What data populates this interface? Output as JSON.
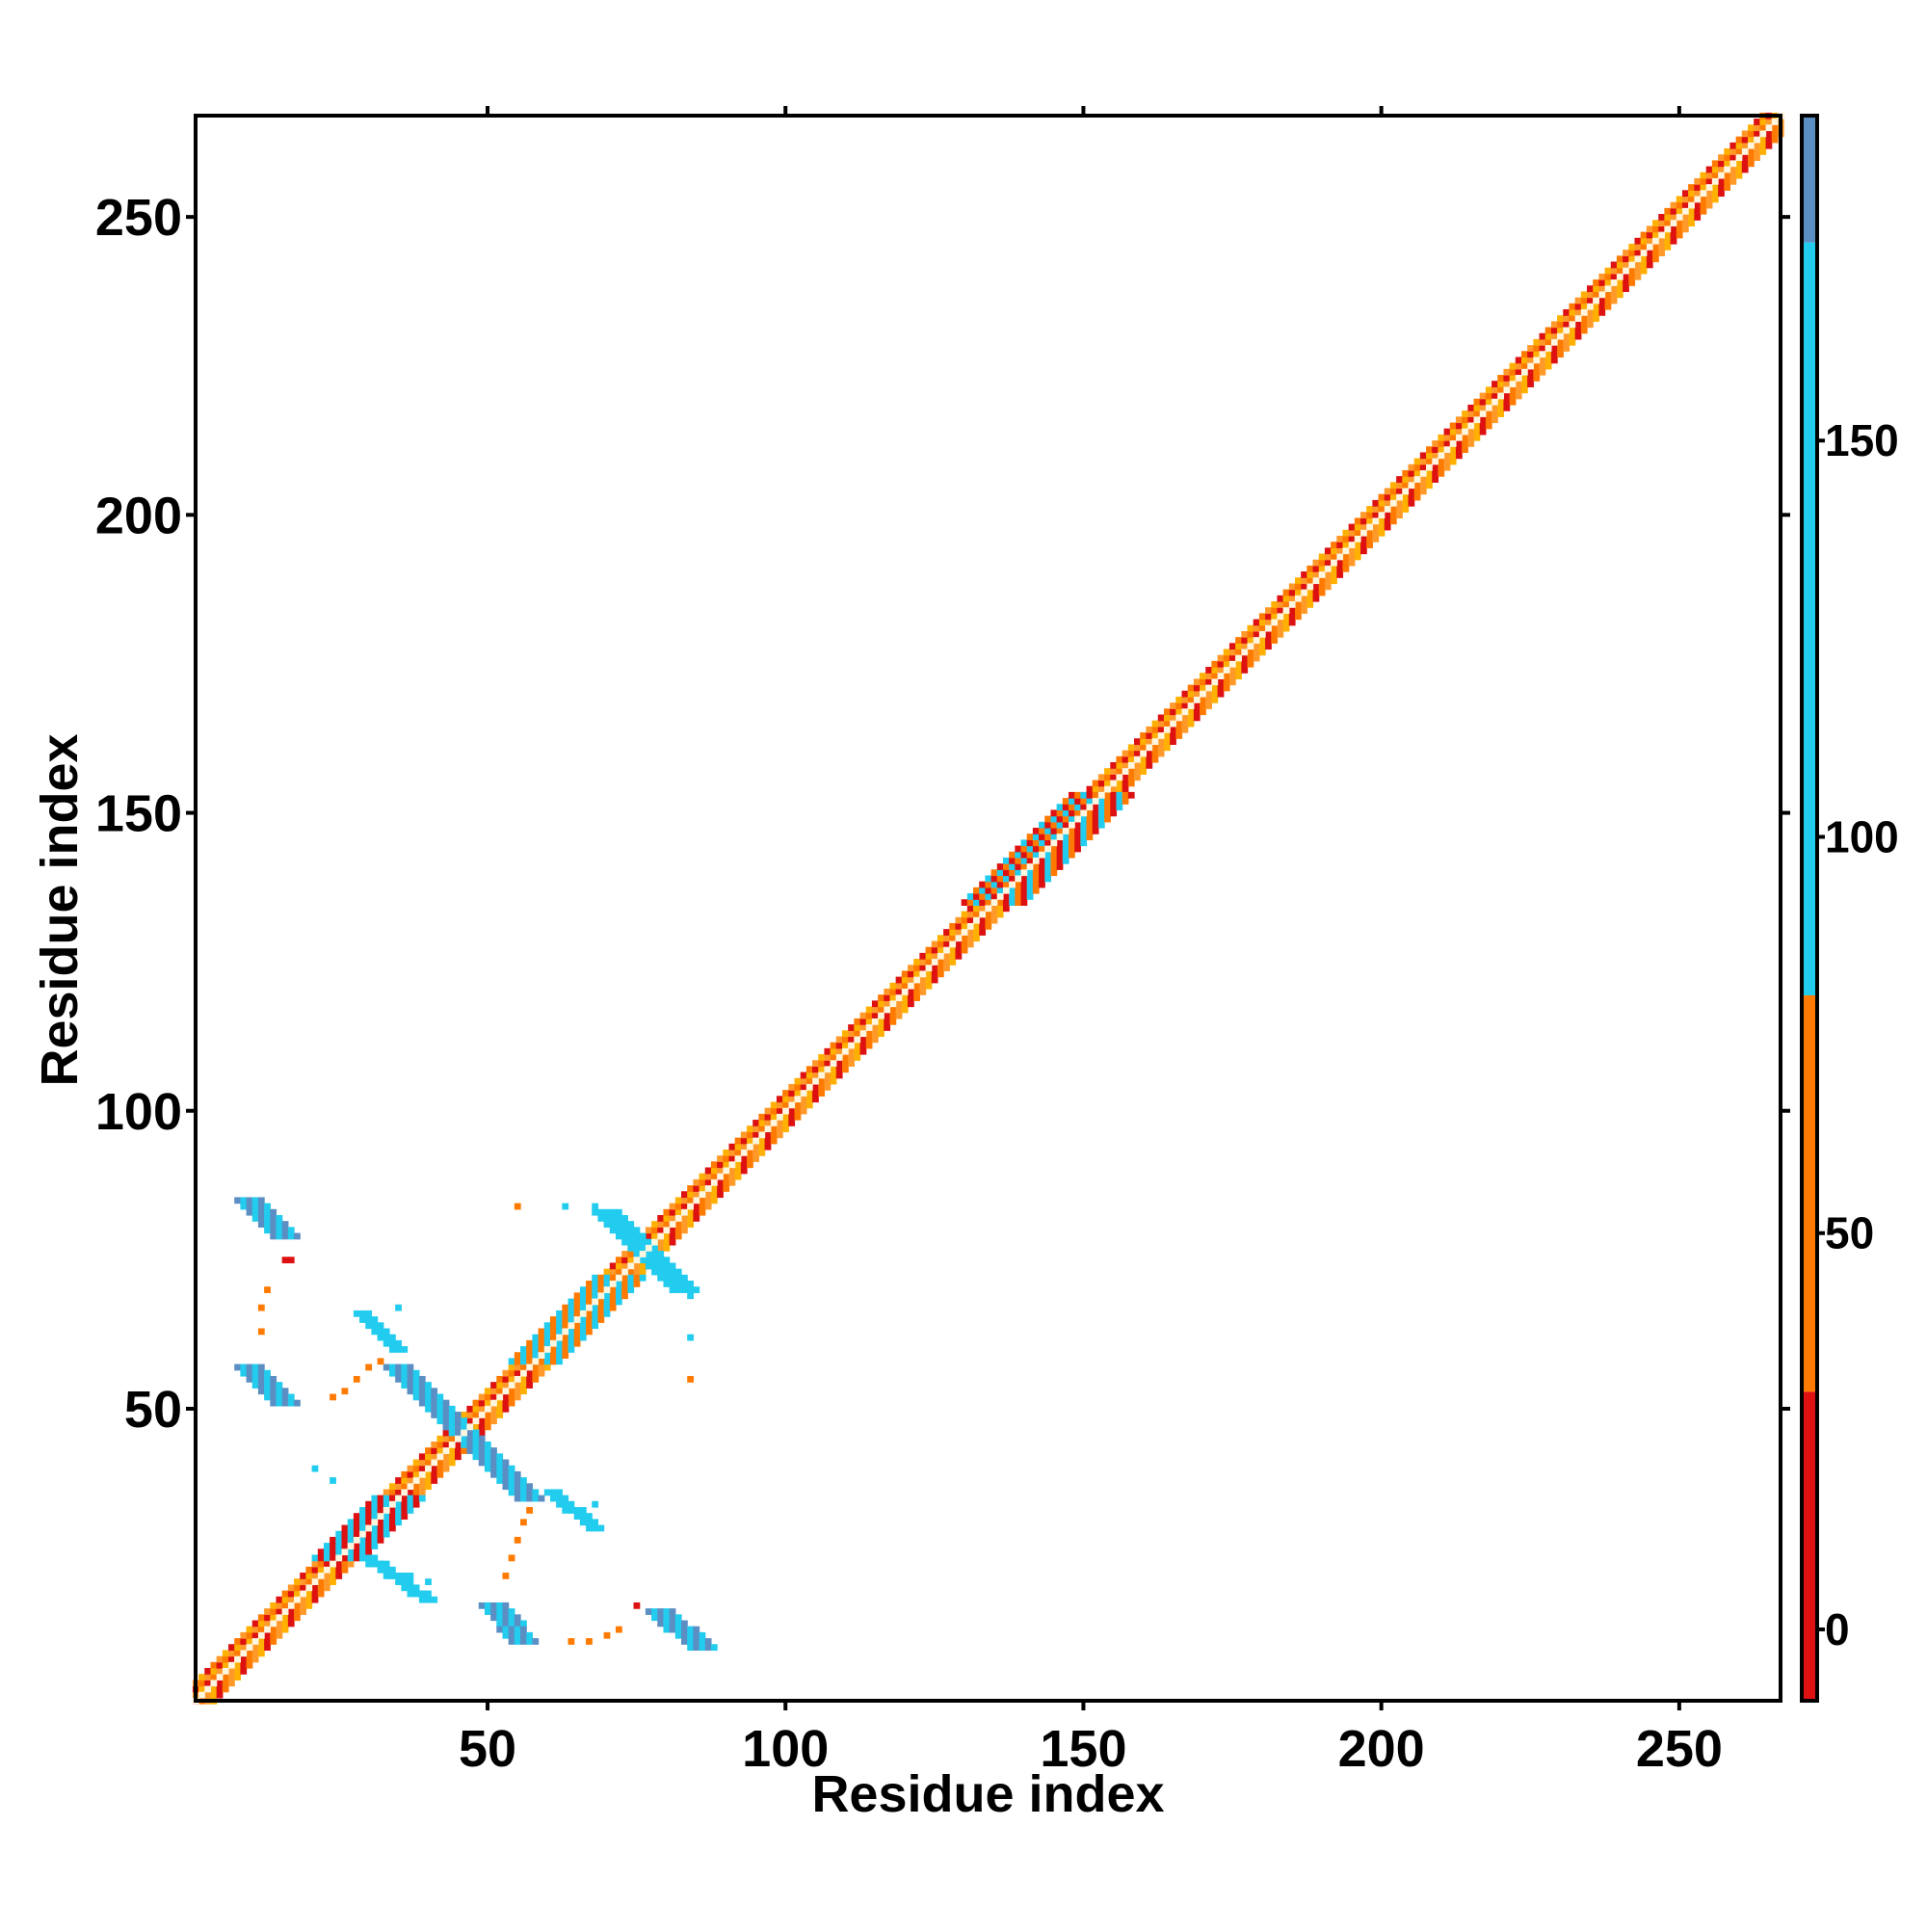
{
  "chart_data": {
    "type": "heatmap",
    "xlabel": "Residue index",
    "ylabel": "Residue index",
    "xlim": [
      1,
      267
    ],
    "ylim": [
      1,
      267
    ],
    "x_ticks": [
      50,
      100,
      150,
      200,
      250
    ],
    "y_ticks": [
      50,
      100,
      150,
      200,
      250
    ],
    "colorbar": {
      "range": [
        -9,
        191
      ],
      "ticks": [
        0,
        50,
        100,
        150
      ],
      "bands": [
        {
          "from": -9,
          "to": 30,
          "color": "#dd1111"
        },
        {
          "from": 30,
          "to": 80,
          "color": "#ff7a00"
        },
        {
          "from": 80,
          "to": 175,
          "color": "#22ccee"
        },
        {
          "from": 175,
          "to": 191,
          "color": "#5b8fc4"
        }
      ]
    },
    "contact_regions": [
      {
        "name": "diagonal",
        "x0": 1,
        "y0": 1,
        "x1": 267,
        "y1": 267,
        "width": 3,
        "colors": [
          "#dd1111",
          "#ff7a00",
          "#ff9a2a",
          "#ffb000"
        ]
      },
      {
        "name": "diagonal-helix-1",
        "x0": 25,
        "y0": 25,
        "x1": 35,
        "y1": 35,
        "width": 4,
        "colors": [
          "#22ccee",
          "#dd1111"
        ]
      },
      {
        "name": "diagonal-helix-2",
        "x0": 58,
        "y0": 58,
        "x1": 72,
        "y1": 72,
        "width": 4,
        "colors": [
          "#22ccee",
          "#ff7a00"
        ]
      },
      {
        "name": "diagonal-helix-3",
        "x0": 135,
        "y0": 135,
        "x1": 153,
        "y1": 153,
        "width": 5,
        "colors": [
          "#22ccee",
          "#ff7a00",
          "#dd1111"
        ]
      },
      {
        "name": "anti-parallel-1",
        "x0": 10,
        "y0": 85,
        "x1": 16,
        "y1": 79,
        "width": 2,
        "colors": [
          "#5b8fc4",
          "#22ccee"
        ]
      },
      {
        "name": "anti-parallel-2",
        "x0": 10,
        "y0": 57,
        "x1": 16,
        "y1": 51,
        "width": 2,
        "colors": [
          "#5b8fc4",
          "#22ccee"
        ]
      },
      {
        "name": "anti-parallel-3",
        "x0": 35,
        "y0": 57,
        "x1": 47,
        "y1": 45,
        "width": 2,
        "colors": [
          "#5b8fc4",
          "#22ccee"
        ]
      },
      {
        "name": "anti-parallel-4",
        "x0": 45,
        "y0": 47,
        "x1": 57,
        "y1": 35,
        "width": 2,
        "colors": [
          "#5b8fc4",
          "#22ccee"
        ]
      },
      {
        "name": "anti-parallel-5",
        "x0": 51,
        "y0": 17,
        "x1": 56,
        "y1": 11,
        "width": 2,
        "colors": [
          "#5b8fc4",
          "#22ccee"
        ]
      },
      {
        "name": "anti-parallel-6",
        "x0": 79,
        "y0": 16,
        "x1": 86,
        "y1": 10,
        "width": 2,
        "colors": [
          "#5b8fc4",
          "#22ccee"
        ]
      },
      {
        "name": "cross-77",
        "x0": 70,
        "y0": 83,
        "x1": 83,
        "y1": 70,
        "width": 2,
        "colors": [
          "#22ccee"
        ]
      },
      {
        "name": "spread-30-60",
        "x0": 29,
        "y0": 66,
        "x1": 35,
        "y1": 60,
        "width": 1,
        "colors": [
          "#22ccee"
        ]
      },
      {
        "name": "spread-60-30",
        "x0": 61,
        "y0": 36,
        "x1": 68,
        "y1": 30,
        "width": 1,
        "colors": [
          "#22ccee"
        ]
      },
      {
        "name": "spread-28-24",
        "x0": 30,
        "y0": 25,
        "x1": 40,
        "y1": 18,
        "width": 1,
        "colors": [
          "#22ccee"
        ]
      }
    ],
    "scatter_contacts": [
      {
        "x": 13,
        "y": 70,
        "c": "#ff7a00"
      },
      {
        "x": 12,
        "y": 67,
        "c": "#ff7a00"
      },
      {
        "x": 12,
        "y": 63,
        "c": "#ff7a00"
      },
      {
        "x": 16,
        "y": 75,
        "c": "#dd1111"
      },
      {
        "x": 17,
        "y": 75,
        "c": "#dd1111"
      },
      {
        "x": 24,
        "y": 52,
        "c": "#ff7a00"
      },
      {
        "x": 26,
        "y": 53,
        "c": "#ff7a00"
      },
      {
        "x": 28,
        "y": 55,
        "c": "#ff7a00"
      },
      {
        "x": 30,
        "y": 57,
        "c": "#ff7a00"
      },
      {
        "x": 32,
        "y": 58,
        "c": "#ff7a00"
      },
      {
        "x": 53,
        "y": 22,
        "c": "#ff7a00"
      },
      {
        "x": 54,
        "y": 25,
        "c": "#ff7a00"
      },
      {
        "x": 55,
        "y": 28,
        "c": "#ff7a00"
      },
      {
        "x": 56,
        "y": 31,
        "c": "#ff7a00"
      },
      {
        "x": 57,
        "y": 33,
        "c": "#ff7a00"
      },
      {
        "x": 64,
        "y": 11,
        "c": "#ff7a00"
      },
      {
        "x": 67,
        "y": 11,
        "c": "#ff7a00"
      },
      {
        "x": 70,
        "y": 12,
        "c": "#ff7a00"
      },
      {
        "x": 72,
        "y": 13,
        "c": "#ff7a00"
      },
      {
        "x": 75,
        "y": 17,
        "c": "#dd1111"
      },
      {
        "x": 55,
        "y": 84,
        "c": "#ff7a00"
      },
      {
        "x": 84,
        "y": 55,
        "c": "#ff7a00"
      },
      {
        "x": 63,
        "y": 84,
        "c": "#22ccee"
      },
      {
        "x": 68,
        "y": 84,
        "c": "#22ccee"
      },
      {
        "x": 84,
        "y": 69,
        "c": "#22ccee"
      },
      {
        "x": 84,
        "y": 62,
        "c": "#22ccee"
      },
      {
        "x": 35,
        "y": 67,
        "c": "#22ccee"
      },
      {
        "x": 21,
        "y": 40,
        "c": "#22ccee"
      },
      {
        "x": 24,
        "y": 38,
        "c": "#22ccee"
      },
      {
        "x": 37,
        "y": 22,
        "c": "#22ccee"
      },
      {
        "x": 40,
        "y": 21,
        "c": "#22ccee"
      },
      {
        "x": 66,
        "y": 33,
        "c": "#22ccee"
      },
      {
        "x": 68,
        "y": 34,
        "c": "#22ccee"
      }
    ]
  }
}
